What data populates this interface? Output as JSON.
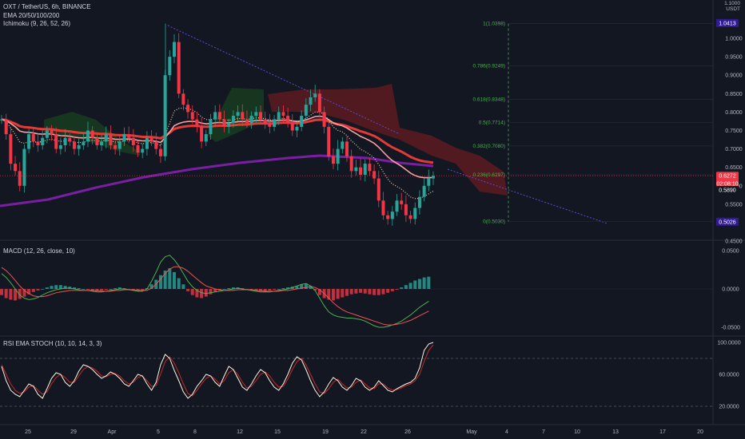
{
  "header": {
    "symbol_line": "OXT / TetherUS, 6h, BINANCE",
    "ema_line": "EMA 20/50/100/200",
    "ichimoku_line": "Ichimoku (9, 26, 52, 26)",
    "currency_top": "1.1000",
    "currency": "USDT"
  },
  "macd_label": "MACD (12, 26, close, 10)",
  "rsi_label": "RSI EMA STOCH (10, 10, 14, 3, 3)",
  "chart_data": [
    {
      "type": "candlestick",
      "title": "OXT / TetherUS, 6h, BINANCE",
      "ylim": [
        0.45,
        1.1
      ],
      "y_ticks": [
        "1.0000",
        "0.9500",
        "0.9000",
        "0.8500",
        "0.8000",
        "0.7500",
        "0.7000",
        "0.6500",
        "0.6000",
        "0.5500",
        "0.4500"
      ],
      "x_ticks": [
        "25",
        "29",
        "Apr",
        "5",
        "8",
        "12",
        "15",
        "19",
        "22",
        "26",
        "May",
        "4",
        "7",
        "10",
        "13",
        "17",
        "20"
      ],
      "fib_levels": [
        {
          "label": "1(1.0398)",
          "value": 1.0398
        },
        {
          "label": "0.786(0.9249)",
          "value": 0.9249
        },
        {
          "label": "0.618(0.8348)",
          "value": 0.8348
        },
        {
          "label": "0.5(0.7714)",
          "value": 0.7714
        },
        {
          "label": "0.382(0.7080)",
          "value": 0.708
        },
        {
          "label": "0.236(0.6297)",
          "value": 0.6297
        },
        {
          "label": "0(0.5030)",
          "value": 0.503
        }
      ],
      "price_badges": [
        {
          "label": "1.0413",
          "value": 1.0413,
          "color": "#311b92"
        },
        {
          "label": "0.6272",
          "value": 0.6272,
          "color": "#f23645"
        },
        {
          "label": "02:08:10",
          "value": 0.6065,
          "color": "#f23645"
        },
        {
          "label": "0.5890",
          "value": 0.589,
          "color": "#131722"
        },
        {
          "label": "0.5026",
          "value": 0.5026,
          "color": "#311b92"
        }
      ],
      "close_series": [
        0.78,
        0.74,
        0.66,
        0.64,
        0.6,
        0.7,
        0.74,
        0.72,
        0.71,
        0.73,
        0.75,
        0.74,
        0.7,
        0.71,
        0.73,
        0.72,
        0.7,
        0.71,
        0.72,
        0.75,
        0.73,
        0.71,
        0.72,
        0.74,
        0.71,
        0.7,
        0.72,
        0.74,
        0.73,
        0.71,
        0.69,
        0.7,
        0.73,
        0.72,
        0.7,
        0.68,
        0.9,
        0.95,
        0.99,
        0.85,
        0.82,
        0.8,
        0.78,
        0.76,
        0.72,
        0.74,
        0.78,
        0.8,
        0.78,
        0.76,
        0.77,
        0.79,
        0.8,
        0.78,
        0.77,
        0.79,
        0.8,
        0.78,
        0.77,
        0.76,
        0.78,
        0.8,
        0.79,
        0.77,
        0.75,
        0.76,
        0.79,
        0.82,
        0.84,
        0.85,
        0.8,
        0.76,
        0.68,
        0.66,
        0.7,
        0.72,
        0.68,
        0.64,
        0.65,
        0.63,
        0.66,
        0.64,
        0.62,
        0.56,
        0.52,
        0.51,
        0.53,
        0.56,
        0.55,
        0.52,
        0.51,
        0.54,
        0.57,
        0.6,
        0.62,
        0.627
      ],
      "colors": {
        "up": "#26a69a",
        "down": "#f23645",
        "ema20": "#f7c9a9",
        "ema50": "#f5a0a0",
        "ema100": "#e53935",
        "ema200": "#7b1fa2",
        "cloud_up": "#1b5e20",
        "cloud_down": "#b71c1c",
        "fib": "#4caf50"
      }
    },
    {
      "type": "bar",
      "title": "MACD (12, 26, close, 10)",
      "ylim": [
        -0.06,
        0.06
      ],
      "y_ticks": [
        "0.0500",
        "0.0000",
        "-0.0500"
      ],
      "histogram": [
        -0.008,
        -0.012,
        -0.014,
        -0.015,
        -0.013,
        -0.01,
        -0.007,
        -0.004,
        -0.002,
        0.0,
        0.002,
        0.004,
        0.005,
        0.005,
        0.004,
        0.003,
        0.002,
        0.001,
        0.0,
        -0.001,
        -0.002,
        -0.003,
        -0.002,
        -0.001,
        0.0,
        0.001,
        0.002,
        0.001,
        0.0,
        -0.001,
        -0.002,
        -0.002,
        0.001,
        0.006,
        0.012,
        0.018,
        0.024,
        0.027,
        0.022,
        0.014,
        0.006,
        -0.003,
        -0.008,
        -0.011,
        -0.012,
        -0.01,
        -0.007,
        -0.004,
        -0.002,
        0.0,
        0.001,
        0.002,
        0.002,
        0.001,
        0.0,
        -0.001,
        -0.002,
        -0.003,
        -0.003,
        -0.002,
        -0.001,
        0.0,
        0.001,
        0.002,
        0.003,
        0.004,
        0.006,
        0.007,
        0.004,
        -0.002,
        -0.008,
        -0.012,
        -0.014,
        -0.015,
        -0.013,
        -0.011,
        -0.009,
        -0.007,
        -0.006,
        -0.005,
        -0.006,
        -0.007,
        -0.008,
        -0.008,
        -0.007,
        -0.005,
        -0.003,
        -0.001,
        0.002,
        0.005,
        0.008,
        0.011,
        0.013,
        0.015,
        0.016
      ],
      "macd_line": [
        0.02,
        0.015,
        0.008,
        0.0,
        -0.008,
        -0.012,
        -0.014,
        -0.013,
        -0.011,
        -0.008,
        -0.005,
        -0.003,
        -0.001,
        0.0,
        0.001,
        0.001,
        0.0,
        -0.001,
        -0.002,
        -0.002,
        -0.003,
        -0.004,
        -0.004,
        -0.003,
        -0.002,
        -0.001,
        0.0,
        0.0,
        -0.001,
        -0.002,
        -0.003,
        -0.003,
        0.0,
        0.01,
        0.022,
        0.035,
        0.042,
        0.044,
        0.038,
        0.03,
        0.02,
        0.01,
        0.003,
        -0.002,
        -0.005,
        -0.006,
        -0.005,
        -0.004,
        -0.003,
        -0.002,
        -0.001,
        0.0,
        0.001,
        0.0,
        -0.001,
        -0.002,
        -0.003,
        -0.004,
        -0.004,
        -0.004,
        -0.003,
        -0.002,
        -0.001,
        0.0,
        0.002,
        0.004,
        0.006,
        0.007,
        0.004,
        -0.002,
        -0.012,
        -0.022,
        -0.03,
        -0.034,
        -0.036,
        -0.037,
        -0.038,
        -0.038,
        -0.039,
        -0.04,
        -0.042,
        -0.045,
        -0.048,
        -0.05,
        -0.05,
        -0.049,
        -0.047,
        -0.045,
        -0.042,
        -0.038,
        -0.034,
        -0.029,
        -0.024,
        -0.02,
        -0.016
      ],
      "signal_line": [
        0.028,
        0.024,
        0.018,
        0.011,
        0.004,
        -0.002,
        -0.006,
        -0.009,
        -0.01,
        -0.01,
        -0.009,
        -0.007,
        -0.005,
        -0.004,
        -0.003,
        -0.002,
        -0.002,
        -0.002,
        -0.002,
        -0.002,
        -0.002,
        -0.002,
        -0.003,
        -0.003,
        -0.003,
        -0.002,
        -0.002,
        -0.001,
        -0.001,
        -0.001,
        -0.002,
        -0.002,
        -0.002,
        0.001,
        0.006,
        0.013,
        0.02,
        0.026,
        0.029,
        0.029,
        0.027,
        0.023,
        0.018,
        0.013,
        0.008,
        0.004,
        0.002,
        0.0,
        -0.001,
        -0.002,
        -0.002,
        -0.002,
        -0.001,
        -0.001,
        -0.001,
        -0.001,
        -0.002,
        -0.002,
        -0.003,
        -0.003,
        -0.003,
        -0.003,
        -0.002,
        -0.002,
        -0.001,
        0.0,
        0.001,
        0.002,
        0.003,
        0.002,
        -0.001,
        -0.006,
        -0.012,
        -0.018,
        -0.023,
        -0.027,
        -0.03,
        -0.032,
        -0.034,
        -0.036,
        -0.038,
        -0.04,
        -0.042,
        -0.044,
        -0.046,
        -0.047,
        -0.047,
        -0.046,
        -0.045,
        -0.043,
        -0.041,
        -0.038,
        -0.035,
        -0.032,
        -0.029
      ],
      "colors": {
        "hist_up": "#26a69a",
        "hist_down": "#f23645",
        "macd": "#4caf50",
        "signal": "#ef5350"
      }
    },
    {
      "type": "line",
      "title": "RSI EMA STOCH (10, 10, 14, 3, 3)",
      "ylim": [
        10,
        100
      ],
      "y_ticks": [
        "100.0000",
        "60.0000",
        "20.0000"
      ],
      "band_lines": [
        80,
        20
      ],
      "k_line": [
        70,
        52,
        40,
        35,
        32,
        40,
        48,
        45,
        35,
        30,
        42,
        55,
        62,
        60,
        50,
        45,
        52,
        64,
        72,
        70,
        66,
        60,
        55,
        58,
        63,
        60,
        55,
        48,
        45,
        52,
        60,
        58,
        48,
        40,
        50,
        72,
        85,
        80,
        65,
        52,
        38,
        30,
        35,
        45,
        52,
        60,
        58,
        50,
        45,
        58,
        70,
        66,
        55,
        44,
        40,
        48,
        58,
        66,
        62,
        52,
        44,
        40,
        48,
        60,
        74,
        82,
        78,
        66,
        52,
        40,
        32,
        38,
        48,
        56,
        52,
        44,
        40,
        46,
        55,
        52,
        44,
        40,
        44,
        52,
        46,
        40,
        38,
        42,
        45,
        48,
        50,
        55,
        68,
        90,
        98,
        100
      ],
      "d_line": [
        72,
        60,
        48,
        40,
        36,
        38,
        44,
        46,
        40,
        35,
        38,
        48,
        56,
        60,
        56,
        50,
        50,
        58,
        66,
        70,
        68,
        64,
        58,
        57,
        60,
        61,
        58,
        52,
        48,
        50,
        56,
        58,
        52,
        45,
        46,
        60,
        76,
        82,
        74,
        62,
        48,
        36,
        33,
        40,
        48,
        55,
        58,
        54,
        48,
        52,
        62,
        66,
        60,
        50,
        43,
        45,
        52,
        60,
        63,
        58,
        50,
        44,
        45,
        54,
        66,
        76,
        80,
        72,
        60,
        48,
        38,
        36,
        42,
        50,
        54,
        48,
        43,
        44,
        50,
        53,
        48,
        43,
        42,
        48,
        48,
        43,
        40,
        41,
        43,
        46,
        48,
        52,
        60,
        76,
        90,
        97
      ],
      "colors": {
        "k": "#fff3e0",
        "d": "#c62828",
        "band": "#787b86"
      }
    }
  ],
  "x_axis": [
    "25",
    "29",
    "Apr",
    "5",
    "8",
    "12",
    "15",
    "19",
    "22",
    "26",
    "May",
    "4",
    "7",
    "10",
    "13",
    "17",
    "20"
  ]
}
